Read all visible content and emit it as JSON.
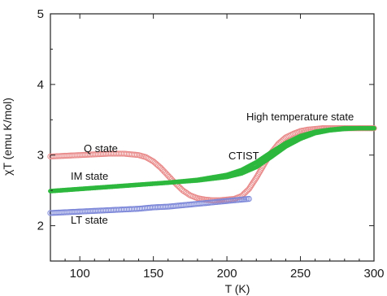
{
  "chart_data": {
    "type": "scatter",
    "title": "",
    "xlabel": "T (K)",
    "ylabel": "χT (emu K/mol)",
    "xlim": [
      80,
      300
    ],
    "ylim": [
      1.5,
      5
    ],
    "xticks": [
      "100",
      "150",
      "200",
      "250",
      "300"
    ],
    "yticks": [
      "2",
      "3",
      "4",
      "5"
    ],
    "grid": false,
    "legend": "none",
    "series": [
      {
        "name": "Q state",
        "color": "#e98a8a",
        "marker": "open-circle",
        "x": [
          80,
          90,
          100,
          110,
          120,
          130,
          140,
          145,
          150,
          155,
          160,
          165,
          170,
          175,
          180,
          185,
          190,
          195,
          200,
          205,
          210,
          215,
          220,
          225,
          230,
          235,
          240,
          245,
          250,
          255,
          260,
          265,
          270,
          275,
          280,
          285,
          290,
          295,
          300
        ],
        "values": [
          2.98,
          2.99,
          3.0,
          3.01,
          3.02,
          3.02,
          3.0,
          2.97,
          2.91,
          2.82,
          2.71,
          2.6,
          2.5,
          2.43,
          2.39,
          2.37,
          2.36,
          2.36,
          2.37,
          2.38,
          2.42,
          2.52,
          2.68,
          2.86,
          3.03,
          3.16,
          3.25,
          3.3,
          3.34,
          3.36,
          3.37,
          3.38,
          3.38,
          3.38,
          3.38,
          3.38,
          3.38,
          3.38,
          3.38
        ]
      },
      {
        "name": "IM state",
        "color": "#2db83d",
        "marker": "filled-circle",
        "x": [
          80,
          100,
          120,
          140,
          160,
          180,
          200,
          210,
          220,
          230,
          240,
          250,
          260,
          270,
          280,
          290,
          300
        ],
        "values": [
          2.49,
          2.52,
          2.55,
          2.58,
          2.61,
          2.65,
          2.72,
          2.79,
          2.9,
          3.04,
          3.17,
          3.27,
          3.33,
          3.36,
          3.38,
          3.38,
          3.38
        ]
      },
      {
        "name": "High temperature state",
        "color": "#2db83d",
        "marker": "filled-circle",
        "x": [
          80,
          100,
          120,
          140,
          160,
          180,
          200,
          210,
          220,
          230,
          240,
          250,
          260,
          270,
          280,
          290,
          300
        ],
        "values": [
          2.49,
          2.52,
          2.55,
          2.58,
          2.61,
          2.64,
          2.69,
          2.74,
          2.83,
          2.97,
          3.12,
          3.23,
          3.31,
          3.35,
          3.37,
          3.38,
          3.38
        ]
      },
      {
        "name": "LT state",
        "color": "#7b86d8",
        "marker": "open-circle",
        "x": [
          80,
          90,
          100,
          110,
          120,
          130,
          140,
          150,
          160,
          170,
          180,
          190,
          200,
          210,
          215
        ],
        "values": [
          2.18,
          2.19,
          2.2,
          2.21,
          2.22,
          2.23,
          2.24,
          2.26,
          2.27,
          2.29,
          2.31,
          2.33,
          2.35,
          2.37,
          2.38
        ]
      }
    ],
    "annotations": [
      "Q state",
      "IM state",
      "LT state",
      "CTIST",
      "High temperature state"
    ]
  }
}
